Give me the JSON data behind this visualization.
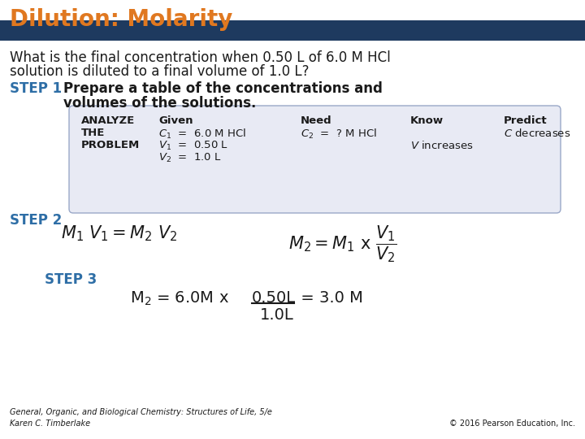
{
  "title": "Dilution: Molarity",
  "title_color": "#E07820",
  "header_bar_color": "#1E3A5F",
  "bg_color": "#FFFFFF",
  "question_line1": "What is the final concentration when 0.50 L of 6.0 M HCl",
  "question_line2": "solution is diluted to a final volume of 1.0 L?",
  "step1_label": "STEP 1",
  "step2_label": "STEP 2",
  "step3_label": "STEP 3",
  "step_color": "#2E6EA6",
  "footer_left": "General, Organic, and Biological Chemistry: Structures of Life, 5/e\nKaren C. Timberlake",
  "footer_right": "© 2016 Pearson Education, Inc.",
  "title_fontsize": 20,
  "question_fontsize": 12,
  "step_label_fontsize": 12,
  "step1_text_fontsize": 12,
  "table_fontsize": 9.5,
  "eq_fontsize": 15,
  "step3_fontsize": 14,
  "footer_fontsize": 7
}
